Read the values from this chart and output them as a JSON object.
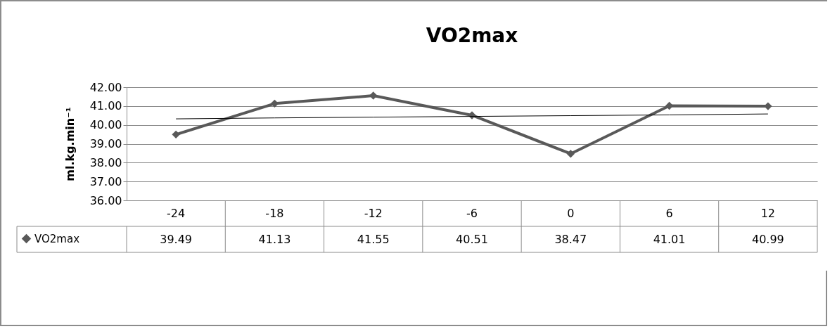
{
  "chart_data": {
    "type": "line",
    "title": "VO2max",
    "ylabel": "ml.kg.min⁻¹",
    "categories": [
      "-24",
      "-18",
      "-12",
      "-6",
      "0",
      "6",
      "12"
    ],
    "series": [
      {
        "name": "VO2max",
        "color": "#595959",
        "values": [
          39.49,
          41.13,
          41.55,
          40.51,
          38.47,
          41.01,
          40.99
        ],
        "value_labels": [
          "39.49",
          "41.13",
          "41.55",
          "40.51",
          "38.47",
          "41.01",
          "40.99"
        ]
      },
      {
        "type": "line",
        "color": "#000000",
        "marker": "none",
        "values": [
          40.32,
          40.37,
          40.41,
          40.45,
          40.49,
          40.53,
          40.58
        ]
      }
    ],
    "ylim": [
      36,
      42
    ],
    "yticks": [
      {
        "value": 36,
        "label": "36.00"
      },
      {
        "value": 37,
        "label": "37.00"
      },
      {
        "value": 38,
        "label": "38.00"
      },
      {
        "value": 39,
        "label": "39.00"
      },
      {
        "value": 40,
        "label": "40.00"
      },
      {
        "value": 41,
        "label": "41.00"
      },
      {
        "value": 42,
        "label": "42.00"
      }
    ],
    "grid": "y",
    "legend": "bottom left",
    "marker": "diamond",
    "line_style": "solid"
  }
}
